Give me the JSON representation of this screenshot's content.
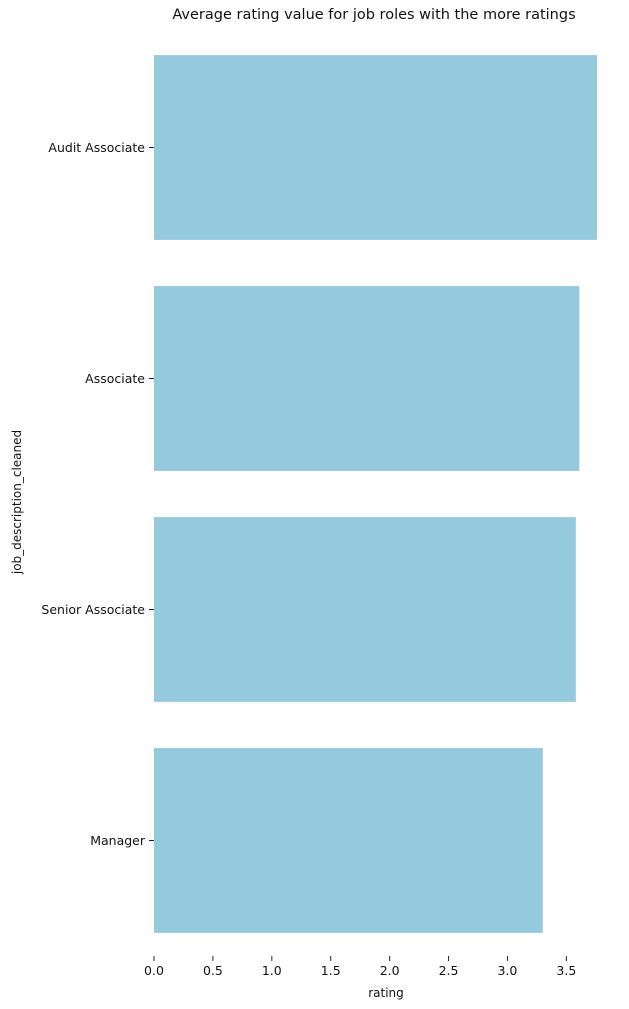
{
  "chart_data": {
    "type": "bar",
    "orientation": "horizontal",
    "title": "Average rating value for job roles with the more ratings",
    "xlabel": "rating",
    "ylabel": "job_description_cleaned",
    "categories": [
      "Audit Associate",
      "Associate",
      "Senior Associate",
      "Manager"
    ],
    "values": [
      3.76,
      3.61,
      3.58,
      3.3
    ],
    "xlim": [
      0,
      3.76
    ],
    "xticks": [
      "0.0",
      "0.5",
      "1.0",
      "1.5",
      "2.0",
      "2.5",
      "3.0",
      "3.5"
    ],
    "grid": false,
    "bar_color": "#95c9dd"
  }
}
